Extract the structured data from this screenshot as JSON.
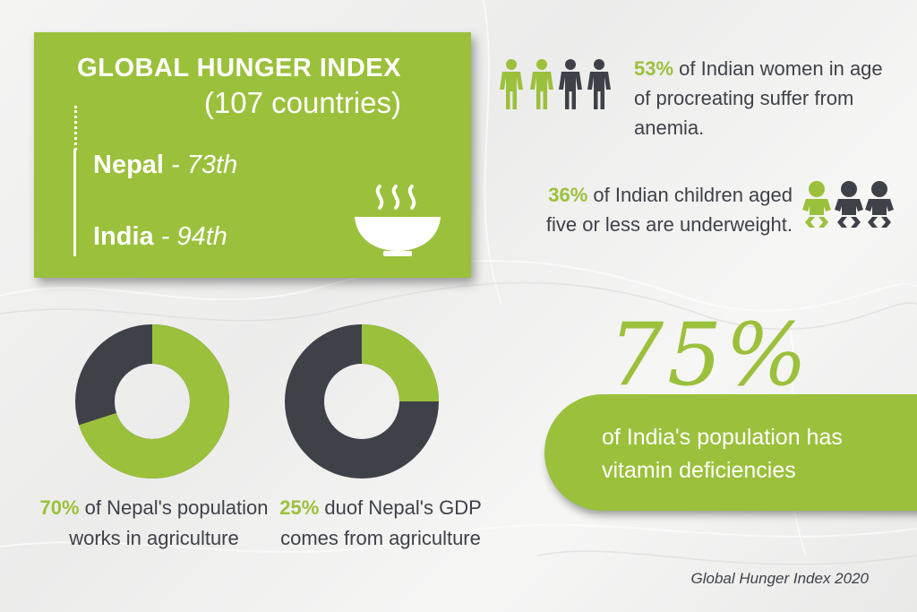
{
  "hunger_index": {
    "title": "GLOBAL HUNGER INDEX",
    "subtitle": "(107 countries)",
    "rows": [
      {
        "country": "Nepal",
        "rank": " - 73th"
      },
      {
        "country": "India",
        "rank": " - 94th"
      }
    ],
    "icon": "soup-bowl-icon"
  },
  "women_stat": {
    "pct": "53%",
    "text": " of Indian women in age of procreating suffer from anemia.",
    "icon": "people-icon",
    "highlighted": 2,
    "total": 4
  },
  "children_stat": {
    "pct": "36%",
    "text": " of Indian children aged five or less are underweight.",
    "icon": "baby-icon",
    "highlighted": 1,
    "total": 3
  },
  "donuts": [
    {
      "pct": "70%",
      "text": " of Nepal's population works in agriculture",
      "value": 70
    },
    {
      "pct": "25%",
      "text": " duof Nepal's GDP comes from agriculture",
      "value": 25
    }
  ],
  "vitamin_stat": {
    "pct": "75%",
    "text": "of India's population has vitamin deficiencies"
  },
  "source": "Global Hunger Index 2020",
  "colors": {
    "green": "#9bc03b",
    "dark": "#3f4149",
    "text": "#3f4149"
  }
}
